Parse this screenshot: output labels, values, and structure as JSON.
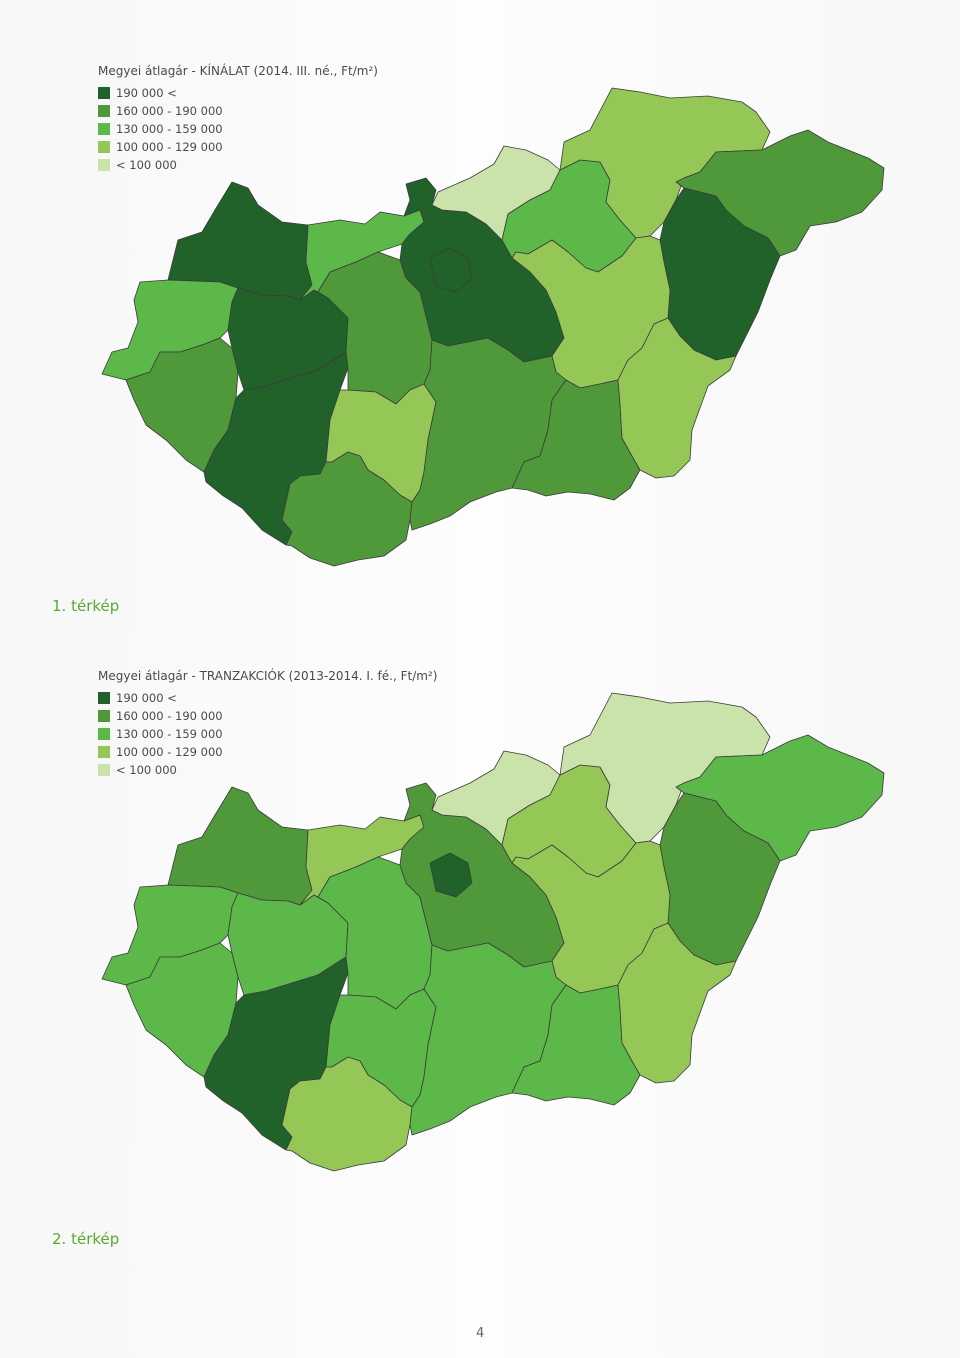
{
  "colors": {
    "c190plus": "#21622a",
    "c160": "#4f993b",
    "c130": "#5cb848",
    "c100": "#94c755",
    "clow": "#c9e3aa"
  },
  "maps": [
    {
      "title": "Megyei átlagár - KÍNÁLAT (2014. III. né., Ft/m²)",
      "caption": "1. térkép",
      "legend": [
        {
          "label": "190 000 <",
          "color": "#21622a"
        },
        {
          "label": "160 000 - 190 000",
          "color": "#4f993b"
        },
        {
          "label": "130 000 - 159 000",
          "color": "#5cb848"
        },
        {
          "label": "100 000 - 129 000",
          "color": "#94c755"
        },
        {
          "label": "< 100 000",
          "color": "#c9e3aa"
        }
      ],
      "regions": [
        {
          "name": "gyor-moson-sopron",
          "class": "190 000 <",
          "color": "#21622a"
        },
        {
          "name": "vas",
          "class": "130 000 - 159 000",
          "color": "#5cb848"
        },
        {
          "name": "zala",
          "class": "160 000 - 190 000",
          "color": "#4f993b"
        },
        {
          "name": "veszprem",
          "class": "190 000 <",
          "color": "#21622a"
        },
        {
          "name": "somogy",
          "class": "190 000 <",
          "color": "#21622a"
        },
        {
          "name": "komarom-esztergom",
          "class": "130 000 - 159 000",
          "color": "#5cb848"
        },
        {
          "name": "fejer",
          "class": "160 000 - 190 000",
          "color": "#4f993b"
        },
        {
          "name": "tolna",
          "class": "100 000 - 129 000",
          "color": "#94c755"
        },
        {
          "name": "baranya",
          "class": "160 000 - 190 000",
          "color": "#4f993b"
        },
        {
          "name": "pest",
          "class": "190 000 <",
          "color": "#21622a"
        },
        {
          "name": "budapest",
          "class": "190 000 <",
          "color": "#21622a"
        },
        {
          "name": "nograd",
          "class": "< 100 000",
          "color": "#c9e3aa"
        },
        {
          "name": "heves",
          "class": "130 000 - 159 000",
          "color": "#5cb848"
        },
        {
          "name": "borsod-abauj-zemplen",
          "class": "100 000 - 129 000",
          "color": "#94c755"
        },
        {
          "name": "szabolcs-szatmar-bereg",
          "class": "160 000 - 190 000",
          "color": "#4f993b"
        },
        {
          "name": "hajdu-bihar",
          "class": "190 000 <",
          "color": "#21622a"
        },
        {
          "name": "jasz-nagykun-szolnok",
          "class": "100 000 - 129 000",
          "color": "#94c755"
        },
        {
          "name": "bacs-kiskun",
          "class": "160 000 - 190 000",
          "color": "#4f993b"
        },
        {
          "name": "csongrad",
          "class": "160 000 - 190 000",
          "color": "#4f993b"
        },
        {
          "name": "bekes",
          "class": "100 000 - 129 000",
          "color": "#94c755"
        }
      ]
    },
    {
      "title": "Megyei átlagár - TRANZAKCIÓK (2013-2014. I. fé., Ft/m²)",
      "caption": "2. térkép",
      "legend": [
        {
          "label": "190 000 <",
          "color": "#21622a"
        },
        {
          "label": "160 000 - 190 000",
          "color": "#4f993b"
        },
        {
          "label": "130 000 - 159 000",
          "color": "#5cb848"
        },
        {
          "label": "100 000 - 129 000",
          "color": "#94c755"
        },
        {
          "label": "< 100 000",
          "color": "#c9e3aa"
        }
      ],
      "regions": [
        {
          "name": "gyor-moson-sopron",
          "class": "160 000 - 190 000",
          "color": "#4f993b"
        },
        {
          "name": "vas",
          "class": "130 000 - 159 000",
          "color": "#5cb848"
        },
        {
          "name": "zala",
          "class": "130 000 - 159 000",
          "color": "#5cb848"
        },
        {
          "name": "veszprem",
          "class": "130 000 - 159 000",
          "color": "#5cb848"
        },
        {
          "name": "somogy",
          "class": "190 000 <",
          "color": "#21622a"
        },
        {
          "name": "komarom-esztergom",
          "class": "100 000 - 129 000",
          "color": "#94c755"
        },
        {
          "name": "fejer",
          "class": "130 000 - 159 000",
          "color": "#5cb848"
        },
        {
          "name": "tolna",
          "class": "130 000 - 159 000",
          "color": "#5cb848"
        },
        {
          "name": "baranya",
          "class": "100 000 - 129 000",
          "color": "#94c755"
        },
        {
          "name": "pest",
          "class": "160 000 - 190 000",
          "color": "#4f993b"
        },
        {
          "name": "budapest",
          "class": "190 000 <",
          "color": "#21622a"
        },
        {
          "name": "nograd",
          "class": "< 100 000",
          "color": "#c9e3aa"
        },
        {
          "name": "heves",
          "class": "100 000 - 129 000",
          "color": "#94c755"
        },
        {
          "name": "borsod-abauj-zemplen",
          "class": "< 100 000",
          "color": "#c9e3aa"
        },
        {
          "name": "szabolcs-szatmar-bereg",
          "class": "130 000 - 159 000",
          "color": "#5cb848"
        },
        {
          "name": "hajdu-bihar",
          "class": "160 000 - 190 000",
          "color": "#4f993b"
        },
        {
          "name": "jasz-nagykun-szolnok",
          "class": "100 000 - 129 000",
          "color": "#94c755"
        },
        {
          "name": "bacs-kiskun",
          "class": "130 000 - 159 000",
          "color": "#5cb848"
        },
        {
          "name": "csongrad",
          "class": "130 000 - 159 000",
          "color": "#5cb848"
        },
        {
          "name": "bekes",
          "class": "100 000 - 129 000",
          "color": "#94c755"
        }
      ]
    }
  ],
  "page_number": "4"
}
